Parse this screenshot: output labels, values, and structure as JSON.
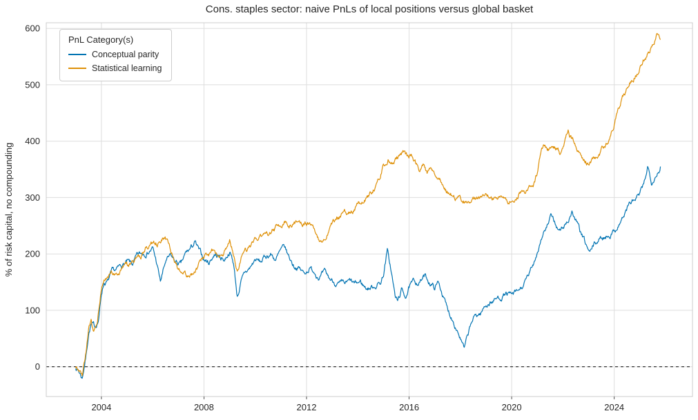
{
  "chart_data": {
    "type": "line",
    "title": "Cons. staples sector: naive PnLs of local positions versus global basket",
    "xlabel": "",
    "ylabel": "% of risk capital, no compounding",
    "xlim": [
      2001.85,
      2027.05
    ],
    "ylim": [
      -53,
      610
    ],
    "xticks": [
      2004,
      2008,
      2012,
      2016,
      2020,
      2024
    ],
    "yticks": [
      0,
      100,
      200,
      300,
      400,
      500,
      600
    ],
    "grid": true,
    "grid_color": "#dddddd",
    "spine_color": "#cccccc",
    "tick_color": "#262626",
    "legend": {
      "title": "PnL Category(s)",
      "position": "upper-left"
    },
    "zero_line": {
      "y": 0,
      "style": "dashed",
      "color": "#000000"
    },
    "noise": {
      "seed": 7,
      "amplitude": 7,
      "persistence": 0.82,
      "step_years": 0.02
    },
    "series": [
      {
        "name": "Conceptual parity",
        "color": "#0173b2",
        "points": [
          [
            2003.0,
            0
          ],
          [
            2003.15,
            -10
          ],
          [
            2003.25,
            -20
          ],
          [
            2003.4,
            20
          ],
          [
            2003.5,
            60
          ],
          [
            2003.6,
            75
          ],
          [
            2003.75,
            70
          ],
          [
            2003.9,
            85
          ],
          [
            2004.0,
            130
          ],
          [
            2004.1,
            150
          ],
          [
            2004.25,
            150
          ],
          [
            2004.4,
            165
          ],
          [
            2004.6,
            170
          ],
          [
            2004.8,
            180
          ],
          [
            2005.0,
            185
          ],
          [
            2005.2,
            180
          ],
          [
            2005.4,
            195
          ],
          [
            2005.6,
            200
          ],
          [
            2005.8,
            205
          ],
          [
            2006.0,
            210
          ],
          [
            2006.15,
            185
          ],
          [
            2006.3,
            150
          ],
          [
            2006.5,
            185
          ],
          [
            2006.7,
            195
          ],
          [
            2006.9,
            185
          ],
          [
            2007.1,
            180
          ],
          [
            2007.3,
            200
          ],
          [
            2007.5,
            210
          ],
          [
            2007.65,
            220
          ],
          [
            2007.8,
            205
          ],
          [
            2008.0,
            190
          ],
          [
            2008.2,
            185
          ],
          [
            2008.4,
            200
          ],
          [
            2008.6,
            195
          ],
          [
            2008.8,
            190
          ],
          [
            2009.0,
            205
          ],
          [
            2009.15,
            185
          ],
          [
            2009.3,
            125
          ],
          [
            2009.45,
            150
          ],
          [
            2009.6,
            165
          ],
          [
            2009.8,
            175
          ],
          [
            2010.0,
            190
          ],
          [
            2010.2,
            185
          ],
          [
            2010.4,
            195
          ],
          [
            2010.6,
            200
          ],
          [
            2010.8,
            190
          ],
          [
            2011.0,
            205
          ],
          [
            2011.15,
            210
          ],
          [
            2011.3,
            195
          ],
          [
            2011.5,
            180
          ],
          [
            2011.7,
            175
          ],
          [
            2011.9,
            165
          ],
          [
            2012.1,
            175
          ],
          [
            2012.3,
            170
          ],
          [
            2012.5,
            160
          ],
          [
            2012.7,
            165
          ],
          [
            2012.9,
            155
          ],
          [
            2013.1,
            150
          ],
          [
            2013.3,
            145
          ],
          [
            2013.5,
            145
          ],
          [
            2013.7,
            150
          ],
          [
            2013.9,
            145
          ],
          [
            2014.1,
            150
          ],
          [
            2014.3,
            140
          ],
          [
            2014.5,
            140
          ],
          [
            2014.7,
            145
          ],
          [
            2014.9,
            150
          ],
          [
            2015.0,
            165
          ],
          [
            2015.15,
            205
          ],
          [
            2015.3,
            170
          ],
          [
            2015.45,
            125
          ],
          [
            2015.55,
            115
          ],
          [
            2015.7,
            135
          ],
          [
            2015.85,
            125
          ],
          [
            2016.0,
            140
          ],
          [
            2016.2,
            150
          ],
          [
            2016.4,
            150
          ],
          [
            2016.6,
            160
          ],
          [
            2016.8,
            150
          ],
          [
            2017.0,
            140
          ],
          [
            2017.15,
            150
          ],
          [
            2017.3,
            130
          ],
          [
            2017.5,
            100
          ],
          [
            2017.7,
            85
          ],
          [
            2017.9,
            65
          ],
          [
            2018.05,
            45
          ],
          [
            2018.15,
            30
          ],
          [
            2018.3,
            55
          ],
          [
            2018.45,
            80
          ],
          [
            2018.6,
            90
          ],
          [
            2018.8,
            95
          ],
          [
            2019.0,
            110
          ],
          [
            2019.2,
            115
          ],
          [
            2019.4,
            120
          ],
          [
            2019.6,
            125
          ],
          [
            2019.8,
            130
          ],
          [
            2020.0,
            125
          ],
          [
            2020.2,
            130
          ],
          [
            2020.4,
            140
          ],
          [
            2020.6,
            155
          ],
          [
            2020.8,
            175
          ],
          [
            2021.0,
            205
          ],
          [
            2021.2,
            235
          ],
          [
            2021.4,
            250
          ],
          [
            2021.55,
            265
          ],
          [
            2021.7,
            255
          ],
          [
            2021.85,
            240
          ],
          [
            2022.0,
            245
          ],
          [
            2022.2,
            260
          ],
          [
            2022.35,
            275
          ],
          [
            2022.5,
            260
          ],
          [
            2022.7,
            235
          ],
          [
            2022.9,
            215
          ],
          [
            2023.05,
            200
          ],
          [
            2023.2,
            215
          ],
          [
            2023.4,
            225
          ],
          [
            2023.6,
            230
          ],
          [
            2023.8,
            235
          ],
          [
            2024.0,
            240
          ],
          [
            2024.2,
            255
          ],
          [
            2024.4,
            270
          ],
          [
            2024.6,
            290
          ],
          [
            2024.8,
            295
          ],
          [
            2025.0,
            305
          ],
          [
            2025.15,
            320
          ],
          [
            2025.3,
            355
          ],
          [
            2025.45,
            330
          ],
          [
            2025.6,
            340
          ],
          [
            2025.8,
            355
          ]
        ]
      },
      {
        "name": "Statistical learning",
        "color": "#de8f05",
        "points": [
          [
            2003.0,
            0
          ],
          [
            2003.15,
            -5
          ],
          [
            2003.25,
            -15
          ],
          [
            2003.4,
            25
          ],
          [
            2003.5,
            65
          ],
          [
            2003.6,
            80
          ],
          [
            2003.7,
            60
          ],
          [
            2003.85,
            80
          ],
          [
            2004.0,
            140
          ],
          [
            2004.1,
            160
          ],
          [
            2004.25,
            155
          ],
          [
            2004.4,
            170
          ],
          [
            2004.6,
            165
          ],
          [
            2004.8,
            175
          ],
          [
            2005.0,
            180
          ],
          [
            2005.2,
            185
          ],
          [
            2005.4,
            190
          ],
          [
            2005.6,
            200
          ],
          [
            2005.8,
            210
          ],
          [
            2006.0,
            215
          ],
          [
            2006.2,
            220
          ],
          [
            2006.4,
            230
          ],
          [
            2006.55,
            225
          ],
          [
            2006.7,
            205
          ],
          [
            2006.85,
            190
          ],
          [
            2007.0,
            175
          ],
          [
            2007.2,
            165
          ],
          [
            2007.4,
            160
          ],
          [
            2007.6,
            165
          ],
          [
            2007.8,
            180
          ],
          [
            2008.0,
            195
          ],
          [
            2008.2,
            200
          ],
          [
            2008.4,
            210
          ],
          [
            2008.55,
            195
          ],
          [
            2008.7,
            200
          ],
          [
            2008.9,
            210
          ],
          [
            2009.0,
            225
          ],
          [
            2009.15,
            205
          ],
          [
            2009.3,
            170
          ],
          [
            2009.45,
            190
          ],
          [
            2009.6,
            205
          ],
          [
            2009.8,
            210
          ],
          [
            2010.0,
            220
          ],
          [
            2010.2,
            230
          ],
          [
            2010.4,
            235
          ],
          [
            2010.6,
            240
          ],
          [
            2010.8,
            245
          ],
          [
            2011.0,
            250
          ],
          [
            2011.2,
            255
          ],
          [
            2011.4,
            250
          ],
          [
            2011.6,
            255
          ],
          [
            2011.8,
            250
          ],
          [
            2012.0,
            255
          ],
          [
            2012.2,
            255
          ],
          [
            2012.35,
            240
          ],
          [
            2012.5,
            225
          ],
          [
            2012.65,
            230
          ],
          [
            2012.8,
            240
          ],
          [
            2013.0,
            255
          ],
          [
            2013.2,
            265
          ],
          [
            2013.4,
            270
          ],
          [
            2013.6,
            275
          ],
          [
            2013.8,
            280
          ],
          [
            2014.0,
            290
          ],
          [
            2014.2,
            295
          ],
          [
            2014.4,
            305
          ],
          [
            2014.6,
            315
          ],
          [
            2014.8,
            330
          ],
          [
            2015.0,
            355
          ],
          [
            2015.2,
            370
          ],
          [
            2015.35,
            360
          ],
          [
            2015.5,
            370
          ],
          [
            2015.65,
            375
          ],
          [
            2015.8,
            380
          ],
          [
            2015.95,
            370
          ],
          [
            2016.1,
            375
          ],
          [
            2016.25,
            360
          ],
          [
            2016.4,
            350
          ],
          [
            2016.55,
            360
          ],
          [
            2016.7,
            345
          ],
          [
            2016.85,
            350
          ],
          [
            2017.0,
            340
          ],
          [
            2017.2,
            335
          ],
          [
            2017.35,
            315
          ],
          [
            2017.5,
            310
          ],
          [
            2017.7,
            305
          ],
          [
            2017.9,
            300
          ],
          [
            2018.1,
            295
          ],
          [
            2018.3,
            290
          ],
          [
            2018.5,
            292
          ],
          [
            2018.7,
            296
          ],
          [
            2018.9,
            300
          ],
          [
            2019.1,
            303
          ],
          [
            2019.3,
            298
          ],
          [
            2019.5,
            300
          ],
          [
            2019.7,
            302
          ],
          [
            2019.9,
            298
          ],
          [
            2020.1,
            293
          ],
          [
            2020.3,
            305
          ],
          [
            2020.5,
            310
          ],
          [
            2020.7,
            318
          ],
          [
            2020.9,
            330
          ],
          [
            2021.0,
            345
          ],
          [
            2021.15,
            390
          ],
          [
            2021.3,
            395
          ],
          [
            2021.45,
            385
          ],
          [
            2021.6,
            395
          ],
          [
            2021.75,
            385
          ],
          [
            2021.9,
            375
          ],
          [
            2022.05,
            390
          ],
          [
            2022.2,
            420
          ],
          [
            2022.35,
            405
          ],
          [
            2022.5,
            395
          ],
          [
            2022.65,
            385
          ],
          [
            2022.8,
            370
          ],
          [
            2023.0,
            360
          ],
          [
            2023.2,
            372
          ],
          [
            2023.4,
            380
          ],
          [
            2023.6,
            390
          ],
          [
            2023.8,
            400
          ],
          [
            2024.0,
            430
          ],
          [
            2024.15,
            455
          ],
          [
            2024.3,
            475
          ],
          [
            2024.45,
            490
          ],
          [
            2024.6,
            505
          ],
          [
            2024.75,
            515
          ],
          [
            2024.9,
            525
          ],
          [
            2025.05,
            540
          ],
          [
            2025.2,
            550
          ],
          [
            2025.35,
            560
          ],
          [
            2025.5,
            575
          ],
          [
            2025.65,
            590
          ],
          [
            2025.8,
            580
          ]
        ]
      }
    ]
  }
}
